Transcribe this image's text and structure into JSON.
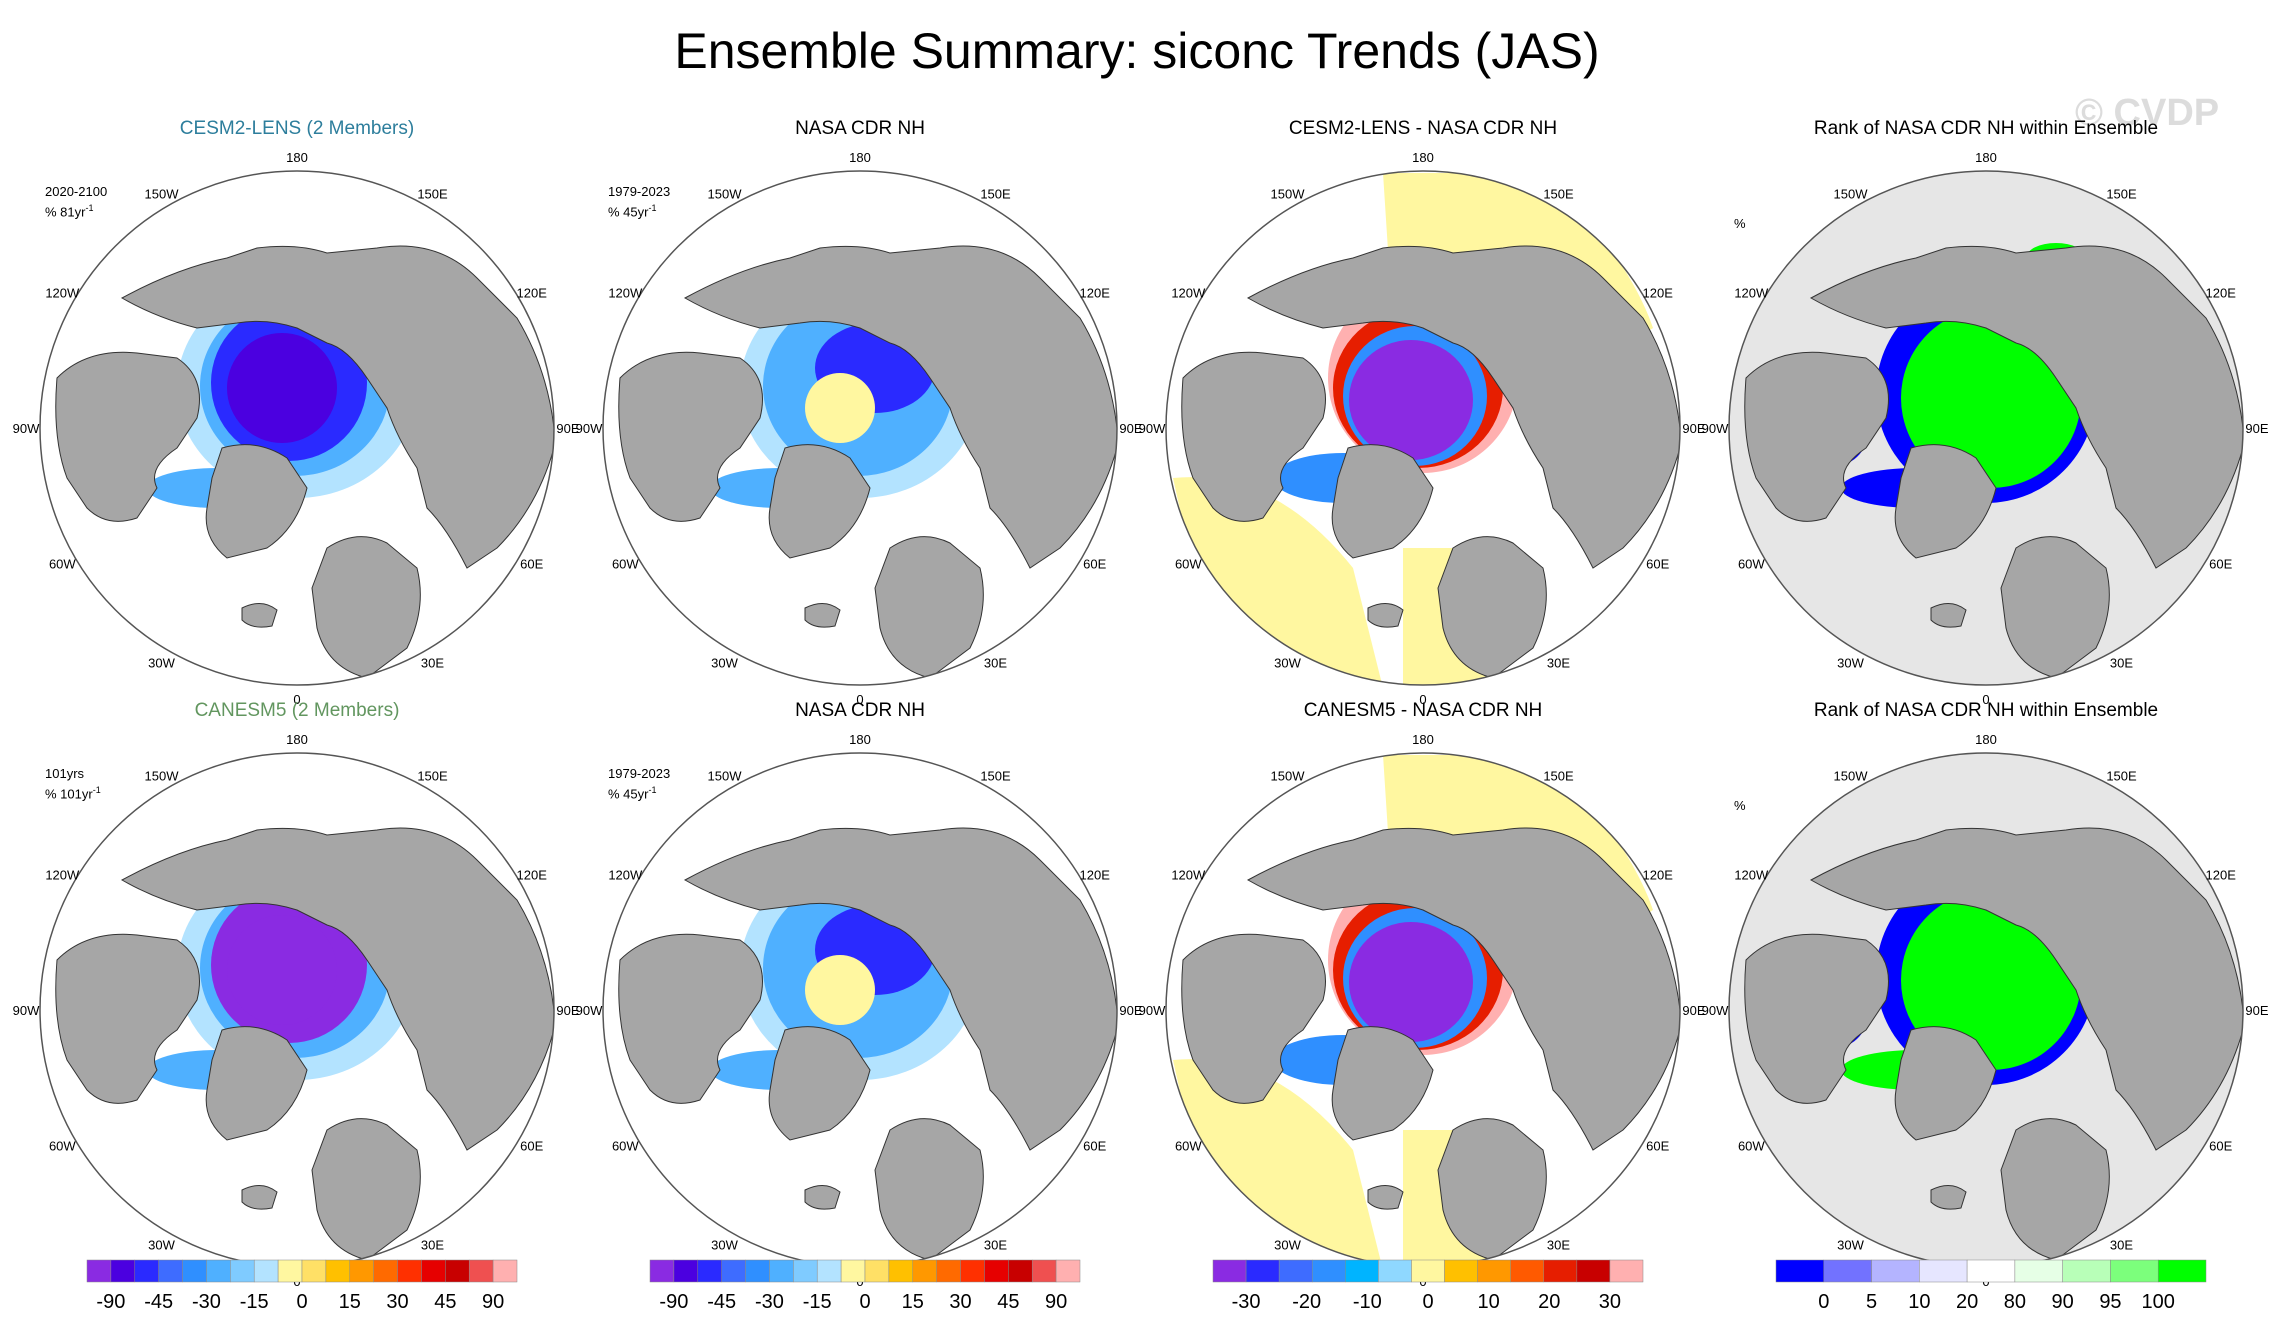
{
  "figure_title": "Ensemble Summary: siconc Trends (JAS)",
  "watermark": "© CVDP",
  "lon_labels": [
    "180",
    "150E",
    "120E",
    "90E",
    "60E",
    "30E",
    "0",
    "30W",
    "60W",
    "90W",
    "120W",
    "150W"
  ],
  "rows": [
    {
      "panels": [
        {
          "title": "CESM2-LENS (2 Members)",
          "title_color": "#2d7e9c",
          "period": "2020-2100",
          "units": "% 81yr",
          "sup": "-1",
          "type": "model"
        },
        {
          "title": "NASA CDR NH",
          "period": "1979-2023",
          "units": "% 45yr",
          "sup": "-1",
          "type": "obs"
        },
        {
          "title": "CESM2-LENS - NASA CDR NH",
          "type": "diff"
        },
        {
          "title": "Rank of NASA CDR NH within Ensemble",
          "units": "%",
          "type": "rank"
        }
      ]
    },
    {
      "panels": [
        {
          "title": "CANESM5 (2 Members)",
          "title_color": "#62965f",
          "period": "101yrs",
          "units": "% 101yr",
          "sup": "-1",
          "type": "model"
        },
        {
          "title": "NASA CDR NH",
          "period": "1979-2023",
          "units": "% 45yr",
          "sup": "-1",
          "type": "obs"
        },
        {
          "title": "CANESM5 - NASA CDR NH",
          "type": "diff"
        },
        {
          "title": "Rank of NASA CDR NH within Ensemble",
          "units": "%",
          "type": "rank"
        }
      ]
    }
  ],
  "colorbars": [
    {
      "name": "trend",
      "labels": [
        "-90",
        "-45",
        "-30",
        "-15",
        "0",
        "15",
        "30",
        "45",
        "90"
      ],
      "colors": [
        "#8a2be2",
        "#4b00e0",
        "#2a2aff",
        "#3e6cff",
        "#2f8fff",
        "#4fb0ff",
        "#7fcbff",
        "#b3e3ff",
        "#fff7a0",
        "#ffe066",
        "#ffc000",
        "#ff9800",
        "#ff6a00",
        "#ff3000",
        "#e60000",
        "#c80000",
        "#ef5050",
        "#ffb0b0"
      ]
    },
    {
      "name": "trend",
      "labels": [
        "-90",
        "-45",
        "-30",
        "-15",
        "0",
        "15",
        "30",
        "45",
        "90"
      ],
      "colors": [
        "#8a2be2",
        "#4b00e0",
        "#2a2aff",
        "#3e6cff",
        "#2f8fff",
        "#4fb0ff",
        "#7fcbff",
        "#b3e3ff",
        "#fff7a0",
        "#ffe066",
        "#ffc000",
        "#ff9800",
        "#ff6a00",
        "#ff3000",
        "#e60000",
        "#c80000",
        "#ef5050",
        "#ffb0b0"
      ]
    },
    {
      "name": "difference",
      "labels": [
        "-30",
        "-20",
        "-10",
        "0",
        "10",
        "20",
        "30"
      ],
      "colors": [
        "#8a2be2",
        "#2a2aff",
        "#3e6cff",
        "#2f8fff",
        "#00b4ff",
        "#8fd8ff",
        "#fff7a0",
        "#ffc000",
        "#ff9800",
        "#ff5a00",
        "#e61e00",
        "#c80000",
        "#ffb0b0"
      ]
    },
    {
      "name": "rank",
      "labels": [
        "0",
        "5",
        "10",
        "20",
        "80",
        "90",
        "95",
        "100"
      ],
      "colors": [
        "#0000ff",
        "#7272ff",
        "#b4b4ff",
        "#e6e6ff",
        "#ffffff",
        "#e6ffe6",
        "#b8ffb8",
        "#7cff7c",
        "#00ff00"
      ]
    }
  ]
}
